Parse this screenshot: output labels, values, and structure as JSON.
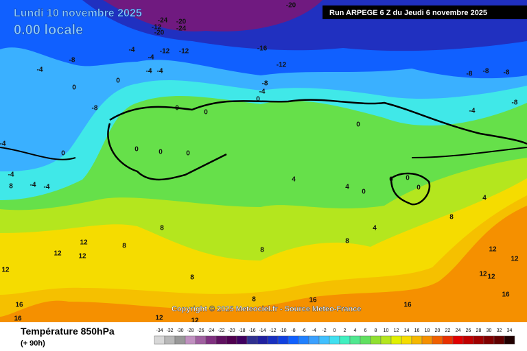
{
  "header": {
    "date": "Lundi 10 novembre 2025",
    "time": "0.00 locale",
    "run": "Run ARPEGE 6 Z du Jeudi 6 novembre 2025"
  },
  "map": {
    "contour_labels": [
      -20,
      -24,
      -12,
      -20,
      -20,
      -24,
      -12,
      -12,
      -16,
      -12,
      -8,
      -4,
      0,
      -4,
      -4,
      -4,
      -4,
      -8,
      -4,
      0,
      0,
      0,
      0,
      0,
      0,
      0,
      0,
      0,
      -8,
      -8,
      -8,
      -8,
      -4,
      -8,
      -4,
      -4,
      -4,
      -4,
      8,
      4,
      4,
      0,
      0,
      0,
      0,
      4,
      4,
      8,
      8,
      8,
      8,
      8,
      8,
      12,
      12,
      12,
      12,
      12,
      12,
      12,
      12,
      16,
      16,
      16,
      16,
      16,
      8,
      12,
      12
    ],
    "copyright": "Copyright © 2025 Meteociel.fr - Source Meteo-France"
  },
  "legend": {
    "title": "Température 850hPa",
    "lead": "(+ 90h)",
    "scale": [
      -34,
      -32,
      -30,
      -28,
      -26,
      -24,
      -22,
      -20,
      -18,
      -16,
      -14,
      -12,
      -10,
      -8,
      -6,
      -4,
      -2,
      0,
      2,
      4,
      6,
      8,
      10,
      12,
      14,
      16,
      18,
      20,
      22,
      24,
      26,
      28,
      30,
      32,
      34
    ],
    "colors": [
      "#d8d8d8",
      "#b8b8b8",
      "#989898",
      "#c090c0",
      "#a060a0",
      "#803080",
      "#601060",
      "#500050",
      "#400060",
      "#303090",
      "#2020a0",
      "#1830c0",
      "#1040e0",
      "#1060ff",
      "#2080ff",
      "#3aa0ff",
      "#40c0ff",
      "#40e0f0",
      "#40f0c0",
      "#50e890",
      "#60e060",
      "#90e030",
      "#b4e61e",
      "#e0f000",
      "#f5dc00",
      "#f5b800",
      "#f59000",
      "#f06000",
      "#e83000",
      "#e00000",
      "#c00000",
      "#a00000",
      "#800000",
      "#600000",
      "#200000"
    ]
  }
}
